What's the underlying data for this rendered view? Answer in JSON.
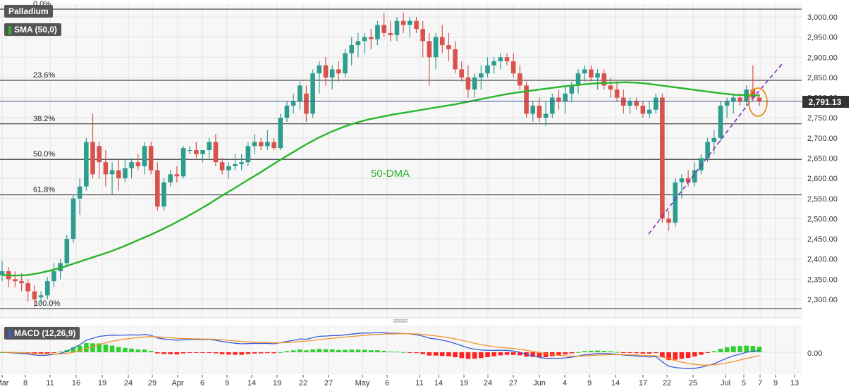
{
  "badges": {
    "symbol": "Palladium",
    "sma": "SMA (50,0)",
    "macd": "MACD (12,26,9)"
  },
  "price_tag": "2,791.13",
  "annotation": "50-DMA",
  "colors": {
    "bull": "#2e9c8e",
    "bear": "#d8534c",
    "sma": "#2bb52b",
    "macd_line": "#3a5bd6",
    "signal_line": "#f0932b",
    "hist_pos": "#2fd12f",
    "hist_neg": "#ff2222",
    "trendline": "#7b2fbf",
    "circle": "#f08a1a"
  },
  "chart_data": [
    {
      "type": "candlestick",
      "title": "Palladium",
      "ylim": [
        2250,
        3020
      ],
      "y_ticks": [
        "2,300.00",
        "2,350.00",
        "2,400.00",
        "2,450.00",
        "2,500.00",
        "2,550.00",
        "2,600.00",
        "2,650.00",
        "2,700.00",
        "2,750.00",
        "2,800.00",
        "2,850.00",
        "2,900.00",
        "2,950.00",
        "3,000.00"
      ],
      "x_ticks": [
        "Mar",
        "8",
        "11",
        "16",
        "19",
        "24",
        "29",
        "Apr",
        "6",
        "9",
        "14",
        "19",
        "22",
        "27",
        "May",
        "6",
        "11",
        "14",
        "19",
        "24",
        "27",
        "Jun",
        "4",
        "9",
        "14",
        "17",
        "22",
        "25",
        "Jul",
        "5",
        "7",
        "9",
        "13"
      ],
      "last_price": 2791.13,
      "fib_levels": [
        {
          "label": "0.0%",
          "value": 3020
        },
        {
          "label": "23.6%",
          "value": 2843
        },
        {
          "label": "38.2%",
          "value": 2735
        },
        {
          "label": "50.0%",
          "value": 2647
        },
        {
          "label": "61.8%",
          "value": 2559
        },
        {
          "label": "100.0%",
          "value": 2275
        }
      ],
      "ohlc": [
        [
          2360,
          2395,
          2345,
          2370
        ],
        [
          2370,
          2380,
          2330,
          2350
        ],
        [
          2350,
          2370,
          2330,
          2345
        ],
        [
          2345,
          2365,
          2320,
          2340
        ],
        [
          2340,
          2350,
          2295,
          2320
        ],
        [
          2320,
          2335,
          2280,
          2300
        ],
        [
          2305,
          2320,
          2290,
          2310
        ],
        [
          2310,
          2355,
          2300,
          2345
        ],
        [
          2345,
          2390,
          2330,
          2370
        ],
        [
          2370,
          2400,
          2350,
          2390
        ],
        [
          2390,
          2460,
          2380,
          2450
        ],
        [
          2450,
          2560,
          2440,
          2550
        ],
        [
          2550,
          2600,
          2510,
          2580
        ],
        [
          2580,
          2700,
          2570,
          2690
        ],
        [
          2690,
          2760,
          2600,
          2610
        ],
        [
          2680,
          2690,
          2600,
          2640
        ],
        [
          2640,
          2670,
          2580,
          2610
        ],
        [
          2610,
          2640,
          2560,
          2620
        ],
        [
          2620,
          2650,
          2570,
          2600
        ],
        [
          2600,
          2650,
          2590,
          2625
        ],
        [
          2625,
          2650,
          2600,
          2640
        ],
        [
          2640,
          2660,
          2620,
          2630
        ],
        [
          2630,
          2690,
          2610,
          2680
        ],
        [
          2680,
          2690,
          2610,
          2620
        ],
        [
          2620,
          2640,
          2520,
          2530
        ],
        [
          2530,
          2600,
          2520,
          2590
        ],
        [
          2590,
          2620,
          2580,
          2610
        ],
        [
          2610,
          2630,
          2590,
          2605
        ],
        [
          2605,
          2680,
          2600,
          2675
        ],
        [
          2670,
          2680,
          2660,
          2670
        ],
        [
          2670,
          2690,
          2650,
          2660
        ],
        [
          2660,
          2670,
          2640,
          2670
        ],
        [
          2670,
          2700,
          2650,
          2690
        ],
        [
          2690,
          2710,
          2630,
          2640
        ],
        [
          2640,
          2650,
          2610,
          2620
        ],
        [
          2620,
          2640,
          2600,
          2630
        ],
        [
          2630,
          2660,
          2620,
          2635
        ],
        [
          2635,
          2660,
          2620,
          2640
        ],
        [
          2640,
          2690,
          2630,
          2680
        ],
        [
          2680,
          2710,
          2660,
          2690
        ],
        [
          2690,
          2700,
          2670,
          2680
        ],
        [
          2680,
          2720,
          2670,
          2690
        ],
        [
          2690,
          2700,
          2670,
          2675
        ],
        [
          2675,
          2760,
          2670,
          2750
        ],
        [
          2750,
          2790,
          2740,
          2780
        ],
        [
          2780,
          2810,
          2760,
          2790
        ],
        [
          2790,
          2840,
          2770,
          2830
        ],
        [
          2810,
          2830,
          2740,
          2760
        ],
        [
          2760,
          2870,
          2750,
          2860
        ],
        [
          2860,
          2890,
          2810,
          2880
        ],
        [
          2880,
          2900,
          2830,
          2850
        ],
        [
          2850,
          2880,
          2820,
          2870
        ],
        [
          2870,
          2890,
          2840,
          2860
        ],
        [
          2860,
          2920,
          2850,
          2910
        ],
        [
          2910,
          2950,
          2880,
          2930
        ],
        [
          2930,
          2960,
          2900,
          2940
        ],
        [
          2940,
          2960,
          2910,
          2950
        ],
        [
          2950,
          2970,
          2920,
          2945
        ],
        [
          2945,
          2990,
          2930,
          2980
        ],
        [
          2980,
          3010,
          2950,
          2960
        ],
        [
          2960,
          2990,
          2940,
          2955
        ],
        [
          2955,
          3000,
          2940,
          2990
        ],
        [
          2990,
          3010,
          2960,
          2980
        ],
        [
          2980,
          3000,
          2950,
          2990
        ],
        [
          2990,
          3000,
          2960,
          2970
        ],
        [
          2970,
          2990,
          2900,
          2940
        ],
        [
          2940,
          2960,
          2830,
          2900
        ],
        [
          2900,
          2960,
          2870,
          2950
        ],
        [
          2950,
          2980,
          2910,
          2930
        ],
        [
          2930,
          2960,
          2890,
          2920
        ],
        [
          2920,
          2940,
          2860,
          2870
        ],
        [
          2870,
          2890,
          2840,
          2850
        ],
        [
          2850,
          2880,
          2800,
          2820
        ],
        [
          2820,
          2860,
          2800,
          2850
        ],
        [
          2850,
          2880,
          2820,
          2860
        ],
        [
          2860,
          2900,
          2850,
          2880
        ],
        [
          2880,
          2900,
          2860,
          2890
        ],
        [
          2890,
          2910,
          2870,
          2900
        ],
        [
          2900,
          2910,
          2880,
          2890
        ],
        [
          2890,
          2910,
          2850,
          2860
        ],
        [
          2860,
          2880,
          2820,
          2830
        ],
        [
          2830,
          2840,
          2750,
          2760
        ],
        [
          2760,
          2790,
          2740,
          2780
        ],
        [
          2780,
          2800,
          2740,
          2750
        ],
        [
          2750,
          2790,
          2730,
          2760
        ],
        [
          2760,
          2810,
          2750,
          2800
        ],
        [
          2800,
          2820,
          2770,
          2790
        ],
        [
          2790,
          2830,
          2760,
          2810
        ],
        [
          2810,
          2840,
          2790,
          2830
        ],
        [
          2830,
          2870,
          2810,
          2860
        ],
        [
          2860,
          2880,
          2840,
          2870
        ],
        [
          2870,
          2880,
          2840,
          2850
        ],
        [
          2850,
          2870,
          2820,
          2860
        ],
        [
          2860,
          2870,
          2820,
          2830
        ],
        [
          2830,
          2850,
          2800,
          2820
        ],
        [
          2820,
          2840,
          2790,
          2800
        ],
        [
          2800,
          2820,
          2760,
          2780
        ],
        [
          2780,
          2800,
          2760,
          2790
        ],
        [
          2790,
          2800,
          2770,
          2780
        ],
        [
          2780,
          2790,
          2750,
          2760
        ],
        [
          2760,
          2790,
          2750,
          2770
        ],
        [
          2770,
          2810,
          2760,
          2800
        ],
        [
          2800,
          2810,
          2490,
          2500
        ],
        [
          2500,
          2520,
          2470,
          2490
        ],
        [
          2490,
          2600,
          2480,
          2590
        ],
        [
          2590,
          2610,
          2550,
          2600
        ],
        [
          2600,
          2620,
          2580,
          2590
        ],
        [
          2590,
          2640,
          2580,
          2620
        ],
        [
          2620,
          2660,
          2610,
          2650
        ],
        [
          2650,
          2700,
          2640,
          2690
        ],
        [
          2690,
          2720,
          2660,
          2700
        ],
        [
          2700,
          2790,
          2690,
          2780
        ],
        [
          2780,
          2800,
          2750,
          2790
        ],
        [
          2790,
          2810,
          2760,
          2800
        ],
        [
          2800,
          2810,
          2780,
          2790
        ],
        [
          2790,
          2830,
          2780,
          2820
        ],
        [
          2820,
          2880,
          2790,
          2800
        ],
        [
          2800,
          2810,
          2780,
          2791.13
        ]
      ],
      "sma_50": [
        2360,
        2359,
        2360,
        2365,
        2372,
        2380,
        2390,
        2400,
        2410,
        2420,
        2432,
        2445,
        2458,
        2472,
        2487,
        2503,
        2520,
        2538,
        2557,
        2575,
        2594,
        2612,
        2631,
        2650,
        2668,
        2686,
        2702,
        2716,
        2728,
        2738,
        2746,
        2752,
        2758,
        2763,
        2768,
        2773,
        2778,
        2783,
        2789,
        2795,
        2801,
        2807,
        2812,
        2816,
        2820,
        2824,
        2828,
        2831,
        2834,
        2836,
        2837,
        2838,
        2837,
        2834,
        2830,
        2826,
        2822,
        2818,
        2814,
        2810,
        2807,
        2806,
        2805
      ]
    },
    {
      "type": "line",
      "title": "MACD (12,26,9)",
      "y_ticks": [
        "0.00"
      ],
      "series": []
    }
  ]
}
